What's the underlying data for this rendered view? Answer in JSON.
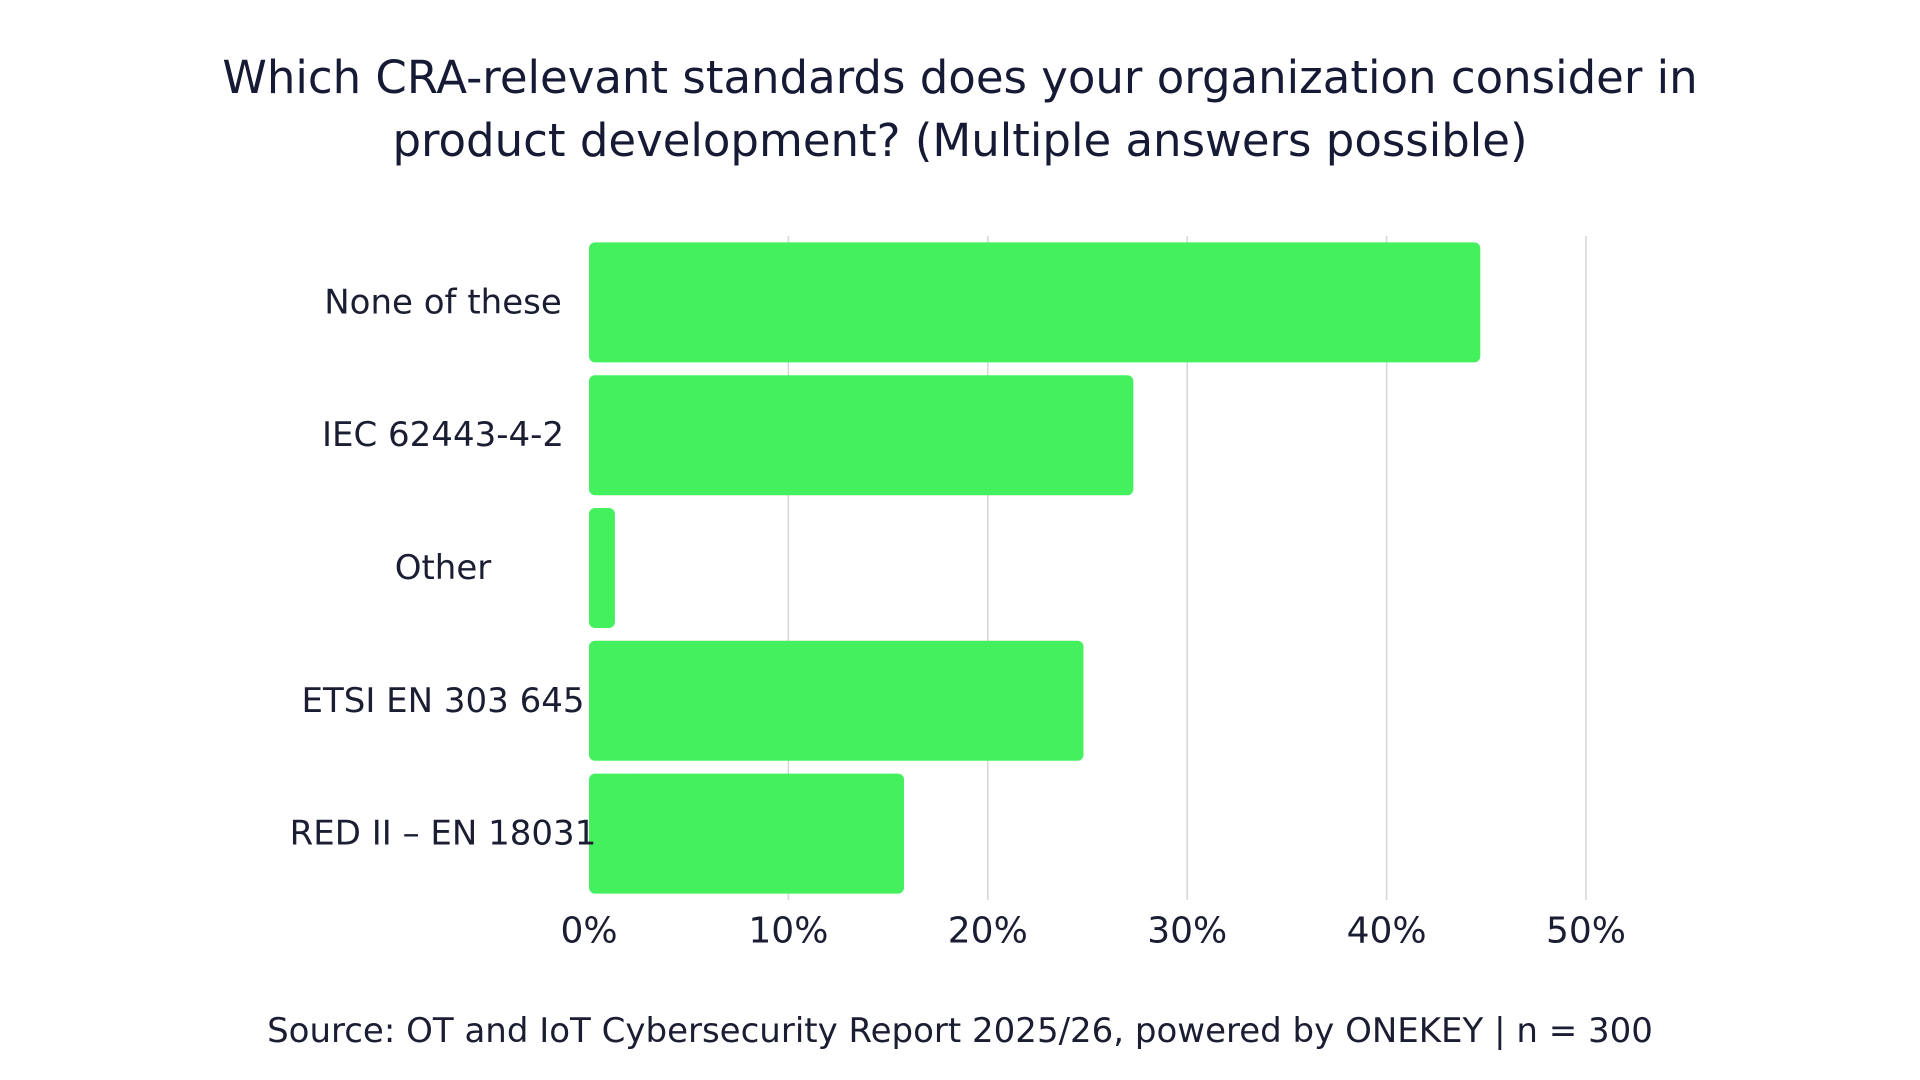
{
  "chart_data": {
    "type": "bar",
    "orientation": "horizontal",
    "title_line1": "Which CRA-relevant standards does your organization consider in",
    "title_line2": "product development? (Multiple answers possible)",
    "categories": [
      "None of these",
      "IEC 62443-4-2",
      "Other",
      "ETSI EN 303 645",
      "RED II – EN 18031"
    ],
    "values": [
      44.7,
      27.3,
      1.3,
      24.8,
      15.8
    ],
    "unit": "%",
    "xlim": [
      0,
      50
    ],
    "xticks": [
      0,
      10,
      20,
      30,
      40,
      50
    ],
    "xtick_labels": [
      "0%",
      "10%",
      "20%",
      "30%",
      "40%",
      "50%"
    ],
    "grid": true,
    "legend": "none",
    "bar_color": "#45f05f",
    "grid_color": "#d6d6d6"
  },
  "source": "Source: OT and IoT Cybersecurity Report 2025/26, powered by ONEKEY | n = 300"
}
